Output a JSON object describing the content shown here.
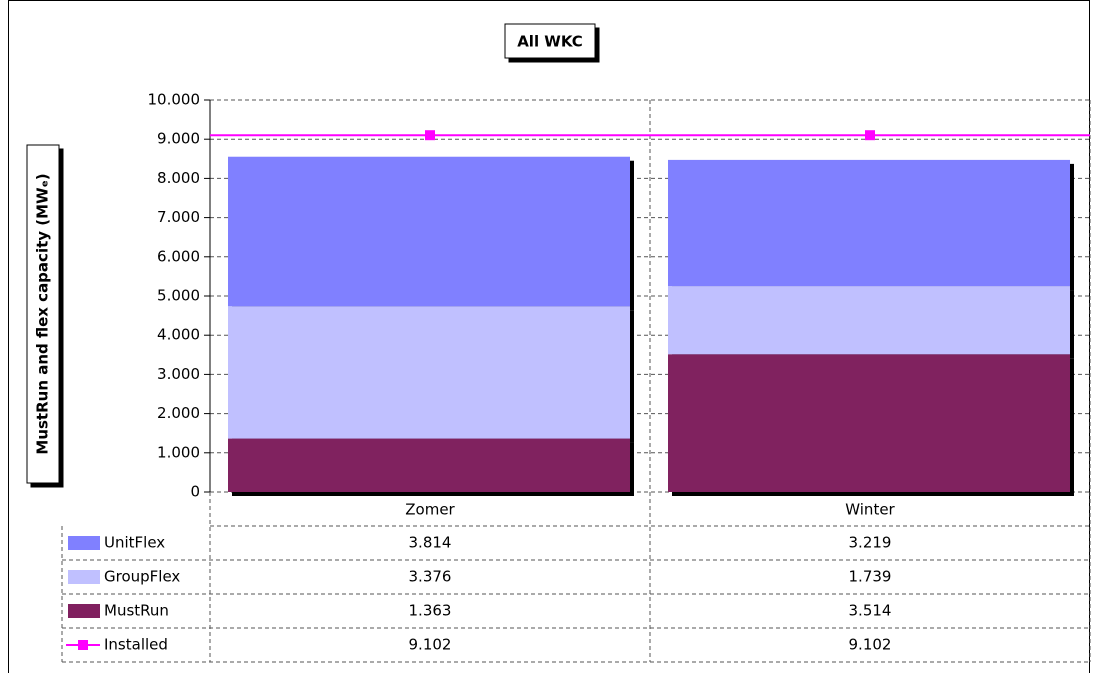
{
  "chart_data": {
    "type": "bar",
    "stacked": true,
    "title": "All WKC",
    "ylabel": "MustRun and flex capacity (MWₑ)",
    "categories": [
      "Zomer",
      "Winter"
    ],
    "series": [
      {
        "name": "UnitFlex",
        "color": "#8080ff",
        "values": [
          3814,
          3219
        ],
        "value_labels": [
          "3.814",
          "3.219"
        ]
      },
      {
        "name": "GroupFlex",
        "color": "#c0c0ff",
        "values": [
          3376,
          1739
        ],
        "value_labels": [
          "3.376",
          "1.739"
        ]
      },
      {
        "name": "MustRun",
        "color": "#80205f",
        "values": [
          1363,
          3514
        ],
        "value_labels": [
          "1.363",
          "3.514"
        ]
      },
      {
        "name": "Installed",
        "color": "#ff00ff",
        "type": "line",
        "values": [
          9102,
          9102
        ],
        "value_labels": [
          "9.102",
          "9.102"
        ]
      }
    ],
    "ylim": [
      0,
      10000
    ],
    "yticks": [
      0,
      {
        "value": 1000,
        "label": "1.000"
      },
      {
        "value": 2000,
        "label": "2.000"
      },
      {
        "value": 3000,
        "label": "3.000"
      },
      {
        "value": 4000,
        "label": "4.000"
      },
      {
        "value": 5000,
        "label": "5.000"
      },
      {
        "value": 6000,
        "label": "6.000"
      },
      {
        "value": 7000,
        "label": "7.000"
      },
      {
        "value": 8000,
        "label": "8.000"
      },
      {
        "value": 9000,
        "label": "9.000"
      },
      {
        "value": 10000,
        "label": "10.000"
      }
    ],
    "grid": true,
    "data_table": true
  }
}
